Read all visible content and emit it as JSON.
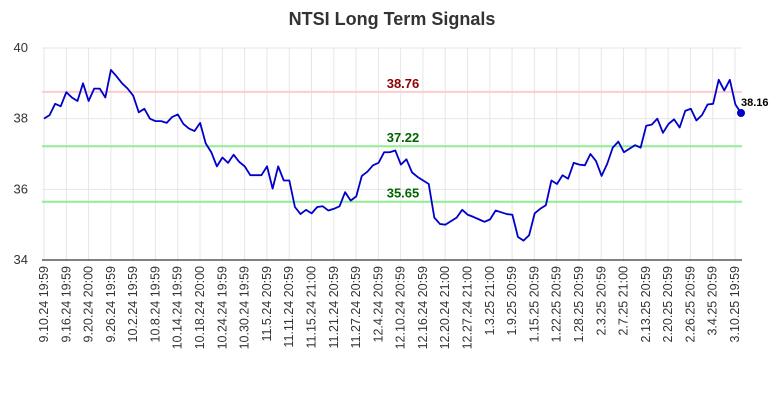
{
  "chart_data": {
    "type": "line",
    "title": "NTSI Long Term Signals",
    "ylim": [
      34,
      40
    ],
    "yticks": [
      34,
      36,
      38,
      40
    ],
    "grid": true,
    "xticks": [
      "9.10.24 19:59",
      "9.16.24 19:59",
      "9.20.24 20:00",
      "9.26.24 19:59",
      "10.2.24 19:59",
      "10.8.24 19:59",
      "10.14.24 19:59",
      "10.18.24 20:00",
      "10.24.24 19:59",
      "10.30.24 19:59",
      "11.5.24 20:59",
      "11.11.24 20:59",
      "11.15.24 21:00",
      "11.21.24 20:59",
      "11.27.24 20:59",
      "12.4.24 20:59",
      "12.10.24 20:59",
      "12.16.24 20:59",
      "12.20.24 21:00",
      "12.27.24 21:00",
      "1.3.25 21:00",
      "1.9.25 20:59",
      "1.15.25 20:59",
      "1.22.25 20:59",
      "1.28.25 20:59",
      "2.3.25 20:59",
      "2.7.25 21:00",
      "2.13.25 20:59",
      "2.20.25 20:59",
      "2.26.25 20:59",
      "3.4.25 20:59",
      "3.10.25 19:59"
    ],
    "series": [
      {
        "color": "#0000cc",
        "values": [
          38.0,
          38.1,
          38.42,
          38.35,
          38.75,
          38.6,
          38.5,
          39.0,
          38.5,
          38.85,
          38.85,
          38.6,
          39.38,
          39.2,
          39.0,
          38.85,
          38.65,
          38.18,
          38.28,
          38.0,
          37.93,
          37.93,
          37.88,
          38.05,
          38.12,
          37.85,
          37.72,
          37.65,
          37.88,
          37.3,
          37.05,
          36.65,
          36.9,
          36.75,
          36.98,
          36.78,
          36.65,
          36.4,
          36.4,
          36.4,
          36.65,
          36.02,
          36.65,
          36.25,
          36.25,
          35.5,
          35.3,
          35.42,
          35.32,
          35.5,
          35.52,
          35.4,
          35.45,
          35.52,
          35.92,
          35.68,
          35.8,
          36.38,
          36.5,
          36.68,
          36.75,
          37.05,
          37.05,
          37.1,
          36.7,
          36.85,
          36.48,
          36.35,
          36.25,
          36.15,
          35.2,
          35.02,
          35.0,
          35.1,
          35.2,
          35.42,
          35.28,
          35.22,
          35.15,
          35.08,
          35.15,
          35.4,
          35.35,
          35.3,
          35.28,
          34.65,
          34.55,
          34.7,
          35.32,
          35.45,
          35.55,
          36.25,
          36.15,
          36.4,
          36.3,
          36.75,
          36.7,
          36.68,
          37.0,
          36.8,
          36.38,
          36.72,
          37.18,
          37.35,
          37.05,
          37.15,
          37.25,
          37.18,
          37.8,
          37.83,
          38.0,
          37.6,
          37.85,
          37.98,
          37.75,
          38.22,
          38.28,
          37.95,
          38.1,
          38.4,
          38.42,
          39.1,
          38.8,
          39.1,
          38.4,
          38.16
        ]
      }
    ],
    "levels": [
      {
        "value": 38.76,
        "label": "38.76",
        "line_color": "#ffcccc",
        "label_color": "#8b0000"
      },
      {
        "value": 37.22,
        "label": "37.22",
        "line_color": "#90ee90",
        "label_color": "#006400"
      },
      {
        "value": 35.65,
        "label": "35.65",
        "line_color": "#90ee90",
        "label_color": "#006400"
      }
    ],
    "last_value_label": "38.16"
  }
}
